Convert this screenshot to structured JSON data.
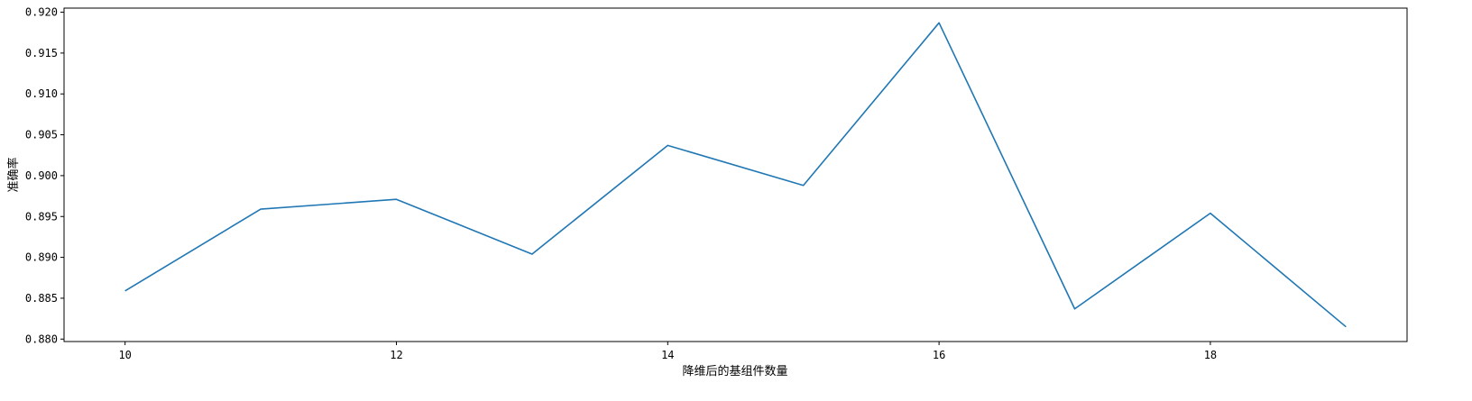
{
  "chart_data": {
    "type": "line",
    "title": "",
    "xlabel": "降维后的基组件数量",
    "ylabel": "准确率",
    "x": [
      10,
      11,
      12,
      13,
      14,
      15,
      16,
      17,
      18,
      19
    ],
    "series": [
      {
        "color": "#1f77b4",
        "values": [
          0.8859,
          0.8959,
          0.8971,
          0.8904,
          0.9037,
          0.8988,
          0.9187,
          0.8837,
          0.8954,
          0.8815
        ]
      }
    ],
    "xlim": [
      9.55,
      19.45
    ],
    "ylim": [
      0.8797,
      0.9205
    ],
    "xticks": [
      10,
      12,
      14,
      16,
      18
    ],
    "xtick_labels": [
      "10",
      "12",
      "14",
      "16",
      "18"
    ],
    "yticks": [
      0.88,
      0.885,
      0.89,
      0.895,
      0.9,
      0.905,
      0.91,
      0.915,
      0.92
    ],
    "ytick_labels": [
      "0.880",
      "0.885",
      "0.890",
      "0.895",
      "0.900",
      "0.905",
      "0.910",
      "0.915",
      "0.920"
    ],
    "grid": false,
    "legend": false
  }
}
